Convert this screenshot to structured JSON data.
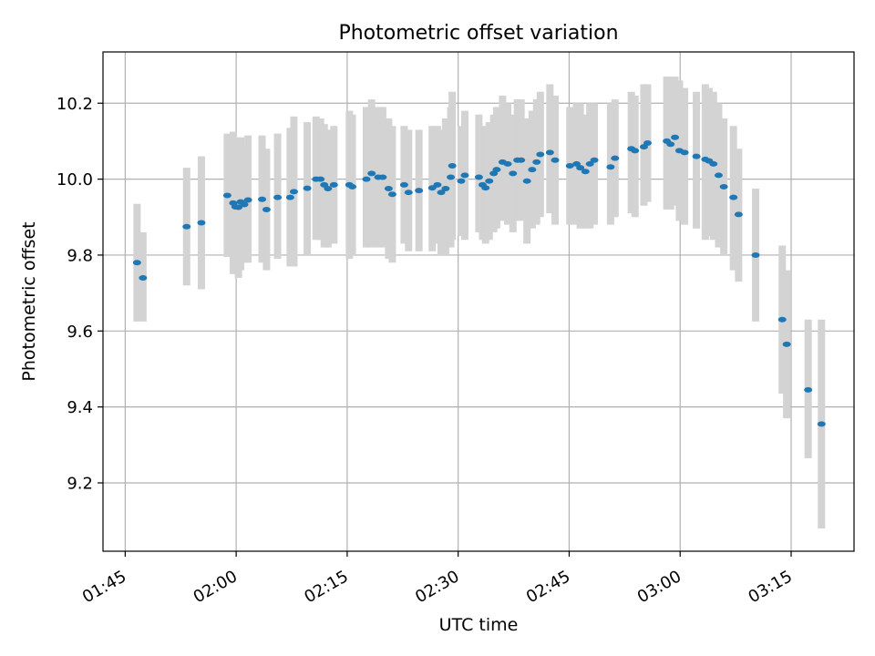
{
  "chart_data": {
    "type": "scatter",
    "title": "Photometric offset variation",
    "xlabel": "UTC time",
    "ylabel": "Photometric offset",
    "x_ticks": [
      "01:45",
      "02:00",
      "02:15",
      "02:30",
      "02:45",
      "03:00",
      "03:15"
    ],
    "y_ticks": [
      "9.2",
      "9.4",
      "9.6",
      "9.8",
      "10.0",
      "10.2"
    ],
    "xlim": [
      "01:42",
      "03:23.5"
    ],
    "ylim": [
      9.02,
      10.335
    ],
    "grid": true,
    "colors": {
      "point": "#1f77b4",
      "errorbar": "#d3d3d3",
      "grid": "#b0b0b0"
    },
    "series": [
      {
        "x": [
          "01:46.6",
          "01:47.4",
          "01:53.3",
          "01:55.3",
          "01:58.8",
          "01:59.6",
          "01:59.9",
          "02:00.3",
          "02:00.6",
          "02:01.1",
          "02:01.6",
          "02:03.5",
          "02:04.1",
          "02:05.6",
          "02:07.3",
          "02:07.8",
          "02:09.6",
          "02:10.8",
          "02:11.4",
          "02:11.9",
          "02:12.4",
          "02:13.2",
          "02:15.3",
          "02:15.7",
          "02:17.6",
          "02:18.3",
          "02:19.2",
          "02:19.8",
          "02:20.6",
          "02:21.1",
          "02:22.7",
          "02:23.3",
          "02:24.7",
          "02:26.5",
          "02:27.2",
          "02:27.7",
          "02:28.3",
          "02:29.0",
          "02:29.2",
          "02:30.4",
          "02:30.9",
          "02:32.8",
          "02:33.3",
          "02:33.7",
          "02:34.2",
          "02:34.8",
          "02:35.2",
          "02:36.0",
          "02:36.7",
          "02:37.4",
          "02:38.0",
          "02:38.5",
          "02:39.3",
          "02:40.0",
          "02:40.6",
          "02:41.1",
          "02:42.4",
          "02:43.1",
          "02:45.1",
          "02:46.0",
          "02:46.5",
          "02:47.2",
          "02:47.8",
          "02:48.4",
          "02:50.6",
          "02:51.2",
          "02:53.4",
          "02:53.9",
          "02:55.1",
          "02:55.6",
          "02:58.2",
          "02:58.7",
          "02:59.3",
          "02:59.9",
          "02:60.6",
          "03:02.2",
          "03:03.4",
          "03:03.9",
          "03:04.5",
          "03:05.2",
          "03:05.9",
          "03:07.2",
          "03:07.9",
          "03:10.2",
          "03:13.8",
          "03:14.4",
          "03:17.3",
          "03:19.1"
        ],
        "y": [
          9.78,
          9.74,
          9.875,
          9.885,
          9.957,
          9.937,
          9.927,
          9.926,
          9.94,
          9.933,
          9.945,
          9.947,
          9.92,
          9.952,
          9.952,
          9.967,
          9.976,
          10.0,
          10.0,
          9.985,
          9.975,
          9.985,
          9.985,
          9.98,
          10.0,
          10.015,
          10.005,
          10.005,
          9.975,
          9.96,
          9.985,
          9.965,
          9.97,
          9.977,
          9.985,
          9.965,
          9.975,
          10.005,
          10.035,
          9.995,
          10.01,
          10.005,
          9.985,
          9.977,
          9.995,
          10.015,
          10.025,
          10.045,
          10.04,
          10.015,
          10.05,
          10.05,
          9.995,
          10.025,
          10.045,
          10.065,
          10.07,
          10.05,
          10.035,
          10.04,
          10.03,
          10.02,
          10.04,
          10.05,
          10.032,
          10.055,
          10.08,
          10.075,
          10.085,
          10.095,
          10.1,
          10.092,
          10.11,
          10.075,
          10.07,
          10.06,
          10.052,
          10.048,
          10.04,
          10.01,
          9.98,
          9.952,
          9.907,
          9.8,
          9.63,
          9.565,
          9.445,
          9.355
        ],
        "err_low": [
          9.625,
          9.625,
          9.72,
          9.71,
          9.795,
          9.75,
          9.75,
          9.74,
          9.76,
          9.78,
          9.78,
          9.78,
          9.76,
          9.79,
          9.77,
          9.77,
          9.8,
          9.84,
          9.84,
          9.82,
          9.82,
          9.83,
          9.79,
          9.8,
          9.82,
          9.82,
          9.82,
          9.82,
          9.79,
          9.78,
          9.83,
          9.81,
          9.81,
          9.81,
          9.83,
          9.8,
          9.8,
          9.82,
          9.84,
          9.85,
          9.84,
          9.86,
          9.84,
          9.83,
          9.84,
          9.86,
          9.87,
          9.89,
          9.88,
          9.86,
          9.89,
          9.89,
          9.83,
          9.87,
          9.88,
          9.9,
          9.91,
          9.88,
          9.88,
          9.88,
          9.87,
          9.87,
          9.87,
          9.88,
          9.88,
          9.9,
          9.91,
          9.9,
          9.93,
          9.94,
          9.92,
          9.92,
          9.93,
          9.89,
          9.88,
          9.87,
          9.84,
          9.85,
          9.84,
          9.82,
          9.8,
          9.76,
          9.73,
          9.625,
          9.435,
          9.37,
          9.265,
          9.08
        ],
        "err_high": [
          9.935,
          9.86,
          10.03,
          10.06,
          10.12,
          10.125,
          10.105,
          10.11,
          10.11,
          10.09,
          10.115,
          10.115,
          10.08,
          10.12,
          10.135,
          10.165,
          10.15,
          10.165,
          10.16,
          10.145,
          10.13,
          10.14,
          10.18,
          10.17,
          10.19,
          10.21,
          10.19,
          10.19,
          10.16,
          10.14,
          10.14,
          10.13,
          10.13,
          10.14,
          10.14,
          10.13,
          10.16,
          10.19,
          10.23,
          10.14,
          10.18,
          10.17,
          10.14,
          10.13,
          10.15,
          10.17,
          10.19,
          10.22,
          10.2,
          10.17,
          10.21,
          10.21,
          10.16,
          10.18,
          10.21,
          10.23,
          10.25,
          10.22,
          10.19,
          10.2,
          10.2,
          10.17,
          10.2,
          10.2,
          10.2,
          10.21,
          10.23,
          10.22,
          10.25,
          10.25,
          10.27,
          10.27,
          10.27,
          10.26,
          10.24,
          10.23,
          10.25,
          10.24,
          10.23,
          10.2,
          10.16,
          10.14,
          10.08,
          9.975,
          9.825,
          9.76,
          9.63,
          9.63
        ]
      }
    ]
  }
}
